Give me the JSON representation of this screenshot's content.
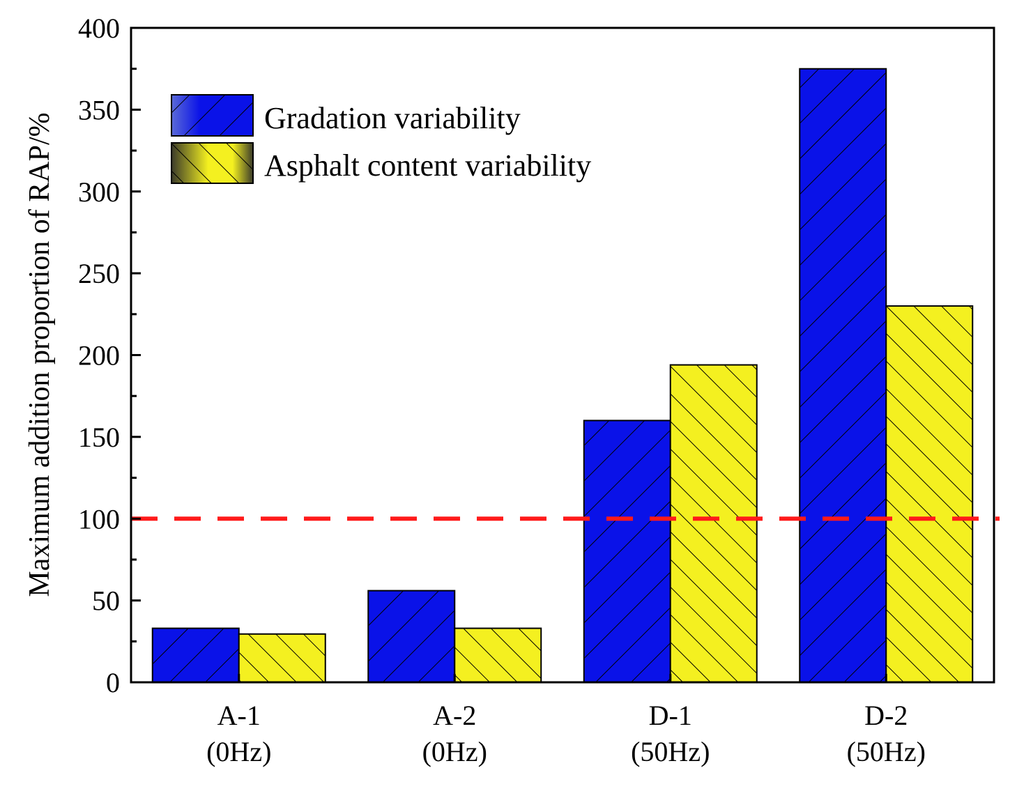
{
  "chart_data": {
    "type": "bar",
    "title": "",
    "xlabel": "",
    "ylabel": "Maximum addition proportion of RAP/%",
    "ylim": [
      0,
      400
    ],
    "yticks": [
      0,
      50,
      100,
      150,
      200,
      250,
      300,
      350,
      400
    ],
    "categories": [
      {
        "name": "A-1",
        "condition": "(0Hz)"
      },
      {
        "name": "A-2",
        "condition": "(0Hz)"
      },
      {
        "name": "D-1",
        "condition": "(50Hz)"
      },
      {
        "name": "D-2",
        "condition": "(50Hz)"
      }
    ],
    "series": [
      {
        "name": "Gradation variability",
        "values": [
          33,
          56,
          160,
          375
        ],
        "color": "#0a12e8",
        "pattern": "forward-hatch"
      },
      {
        "name": "Asphalt content variability",
        "values": [
          29.5,
          33,
          194,
          230
        ],
        "color": "#f4f020",
        "pattern": "back-hatch"
      }
    ],
    "reference_line": {
      "value": 100,
      "color": "#ff1a1a",
      "style": "dashed"
    },
    "legend_position": "top-left"
  }
}
